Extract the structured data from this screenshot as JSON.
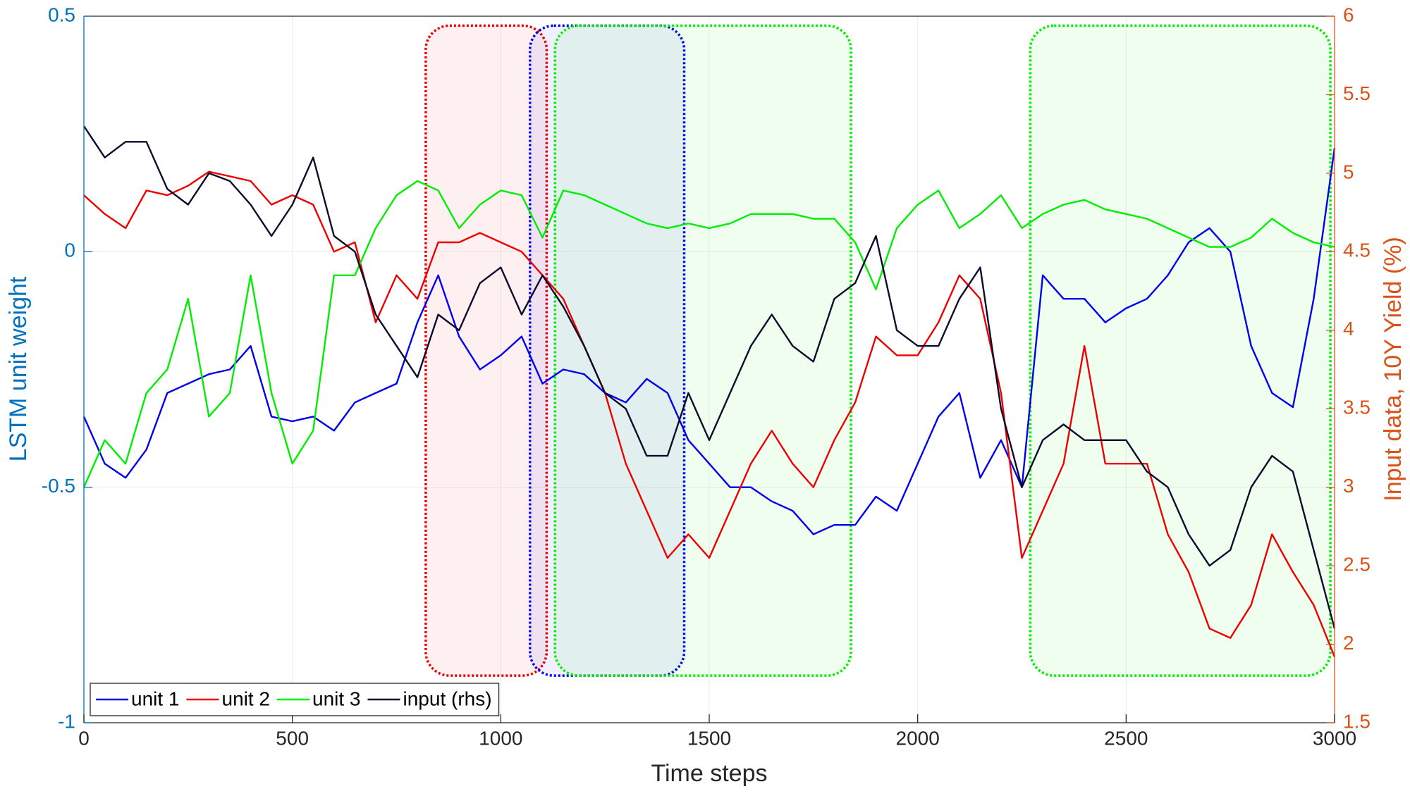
{
  "chart_data": {
    "type": "line",
    "xlabel": "Time steps",
    "ylabel": "LSTM unit weight",
    "y2label": "Input data, 10Y Yield (%)",
    "x": [
      0,
      50,
      100,
      150,
      200,
      250,
      300,
      350,
      400,
      450,
      500,
      550,
      600,
      650,
      700,
      750,
      800,
      850,
      900,
      950,
      1000,
      1050,
      1100,
      1150,
      1200,
      1250,
      1300,
      1350,
      1400,
      1450,
      1500,
      1550,
      1600,
      1650,
      1700,
      1750,
      1800,
      1850,
      1900,
      1950,
      2000,
      2050,
      2100,
      2150,
      2200,
      2250,
      2300,
      2350,
      2400,
      2450,
      2500,
      2550,
      2600,
      2650,
      2700,
      2750,
      2800,
      2850,
      2900,
      2950,
      3000
    ],
    "series": [
      {
        "name": "unit 1",
        "color": "#0000ee",
        "values": [
          -0.35,
          -0.45,
          -0.48,
          -0.42,
          -0.3,
          -0.28,
          -0.26,
          -0.25,
          -0.2,
          -0.35,
          -0.36,
          -0.35,
          -0.38,
          -0.32,
          -0.3,
          -0.28,
          -0.15,
          -0.05,
          -0.18,
          -0.25,
          -0.22,
          -0.18,
          -0.28,
          -0.25,
          -0.26,
          -0.3,
          -0.32,
          -0.27,
          -0.3,
          -0.4,
          -0.45,
          -0.5,
          -0.5,
          -0.53,
          -0.55,
          -0.6,
          -0.58,
          -0.58,
          -0.52,
          -0.55,
          -0.45,
          -0.35,
          -0.3,
          -0.48,
          -0.4,
          -0.5,
          -0.05,
          -0.1,
          -0.1,
          -0.15,
          -0.12,
          -0.1,
          -0.05,
          0.02,
          0.05,
          0.0,
          -0.2,
          -0.3,
          -0.33,
          -0.1,
          0.22
        ]
      },
      {
        "name": "unit 2",
        "color": "#ee0000",
        "values": [
          0.12,
          0.08,
          0.05,
          0.13,
          0.12,
          0.14,
          0.17,
          0.16,
          0.15,
          0.1,
          0.12,
          0.1,
          0.0,
          0.02,
          -0.15,
          -0.05,
          -0.1,
          0.02,
          0.02,
          0.04,
          0.02,
          0.0,
          -0.05,
          -0.1,
          -0.2,
          -0.3,
          -0.45,
          -0.55,
          -0.65,
          -0.6,
          -0.65,
          -0.55,
          -0.45,
          -0.38,
          -0.45,
          -0.5,
          -0.4,
          -0.32,
          -0.18,
          -0.22,
          -0.22,
          -0.15,
          -0.05,
          -0.1,
          -0.3,
          -0.65,
          -0.55,
          -0.45,
          -0.2,
          -0.45,
          -0.45,
          -0.45,
          -0.6,
          -0.68,
          -0.8,
          -0.82,
          -0.75,
          -0.6,
          -0.68,
          -0.75,
          -0.86
        ]
      },
      {
        "name": "unit 3",
        "color": "#00ee00",
        "values": [
          -0.5,
          -0.4,
          -0.45,
          -0.3,
          -0.25,
          -0.1,
          -0.35,
          -0.3,
          -0.05,
          -0.3,
          -0.45,
          -0.38,
          -0.05,
          -0.05,
          0.05,
          0.12,
          0.15,
          0.13,
          0.05,
          0.1,
          0.13,
          0.12,
          0.03,
          0.13,
          0.12,
          0.1,
          0.08,
          0.06,
          0.05,
          0.06,
          0.05,
          0.06,
          0.08,
          0.08,
          0.08,
          0.07,
          0.07,
          0.02,
          -0.08,
          0.05,
          0.1,
          0.13,
          0.05,
          0.08,
          0.12,
          0.05,
          0.08,
          0.1,
          0.11,
          0.09,
          0.08,
          0.07,
          0.05,
          0.03,
          0.01,
          0.01,
          0.03,
          0.07,
          0.04,
          0.02,
          0.01
        ]
      },
      {
        "name": "input (rhs)",
        "color": "#0b0b2b",
        "axis": "y2",
        "values": [
          5.3,
          5.1,
          5.2,
          5.2,
          4.9,
          4.8,
          5.0,
          4.95,
          4.8,
          4.6,
          4.8,
          5.1,
          4.6,
          4.5,
          4.1,
          3.9,
          3.7,
          4.1,
          4.0,
          4.3,
          4.4,
          4.1,
          4.35,
          4.15,
          3.9,
          3.6,
          3.5,
          3.2,
          3.2,
          3.6,
          3.3,
          3.6,
          3.9,
          4.1,
          3.9,
          3.8,
          4.2,
          4.3,
          4.6,
          4.0,
          3.9,
          3.9,
          4.2,
          4.4,
          3.5,
          3.0,
          3.3,
          3.4,
          3.3,
          3.3,
          3.3,
          3.1,
          3.0,
          2.7,
          2.5,
          2.6,
          3.0,
          3.2,
          3.1,
          2.6,
          2.1
        ]
      }
    ],
    "xlim": [
      0,
      3000
    ],
    "ylim": [
      -1,
      0.5
    ],
    "y2lim": [
      1.5,
      6
    ],
    "xticks": [
      0,
      500,
      1000,
      1500,
      2000,
      2500,
      3000
    ],
    "yticks": [
      -1,
      -0.5,
      0,
      0.5
    ],
    "y2ticks": [
      1.5,
      2,
      2.5,
      3,
      3.5,
      4,
      4.5,
      5,
      5.5,
      6
    ],
    "grid": true,
    "legend": "lower left",
    "highlights": [
      {
        "x": [
          820,
          1110
        ],
        "y": [
          -0.9,
          0.48
        ],
        "color": "#ee0000"
      },
      {
        "x": [
          1070,
          1440
        ],
        "y": [
          -0.9,
          0.48
        ],
        "color": "#0000ee"
      },
      {
        "x": [
          1130,
          1840
        ],
        "y": [
          -0.9,
          0.48
        ],
        "color": "#00ee00"
      },
      {
        "x": [
          2270,
          2990
        ],
        "y": [
          -0.9,
          0.48
        ],
        "color": "#00ee00"
      }
    ]
  }
}
